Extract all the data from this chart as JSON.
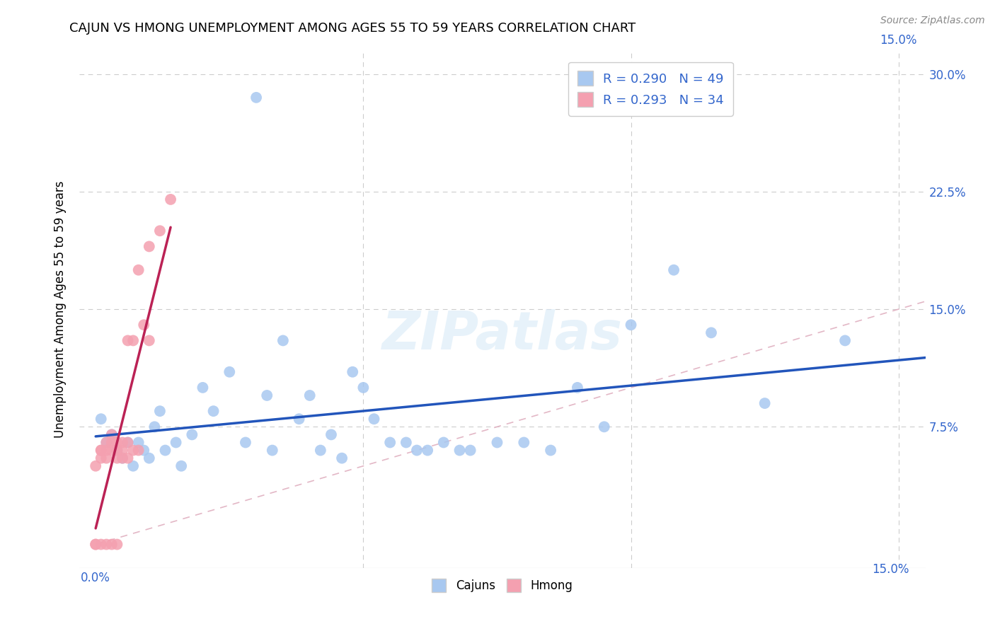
{
  "title": "CAJUN VS HMONG UNEMPLOYMENT AMONG AGES 55 TO 59 YEARS CORRELATION CHART",
  "source": "Source: ZipAtlas.com",
  "ylabel": "Unemployment Among Ages 55 to 59 years",
  "xlim": [
    -0.003,
    0.155
  ],
  "ylim": [
    -0.015,
    0.315
  ],
  "xtick_left": 0.0,
  "xtick_right": 0.15,
  "yticks": [
    0.075,
    0.15,
    0.225,
    0.3
  ],
  "ytick_labels": [
    "7.5%",
    "15.0%",
    "22.5%",
    "30.0%"
  ],
  "cajun_color": "#a8c8f0",
  "hmong_color": "#f4a0b0",
  "cajun_line_color": "#2255bb",
  "hmong_line_color": "#bb2255",
  "diagonal_color": "#e0b0c0",
  "legend_R_cajun": "R = 0.290",
  "legend_N_cajun": "N = 49",
  "legend_R_hmong": "R = 0.293",
  "legend_N_hmong": "N = 34",
  "cajun_x": [
    0.001,
    0.002,
    0.003,
    0.004,
    0.005,
    0.006,
    0.007,
    0.008,
    0.009,
    0.01,
    0.011,
    0.012,
    0.013,
    0.015,
    0.016,
    0.018,
    0.02,
    0.022,
    0.025,
    0.028,
    0.03,
    0.032,
    0.033,
    0.035,
    0.038,
    0.04,
    0.042,
    0.044,
    0.046,
    0.048,
    0.05,
    0.052,
    0.055,
    0.058,
    0.06,
    0.062,
    0.065,
    0.068,
    0.07,
    0.075,
    0.08,
    0.085,
    0.09,
    0.095,
    0.1,
    0.108,
    0.115,
    0.125,
    0.14
  ],
  "cajun_y": [
    0.08,
    0.065,
    0.07,
    0.06,
    0.055,
    0.065,
    0.05,
    0.065,
    0.06,
    0.055,
    0.075,
    0.085,
    0.06,
    0.065,
    0.05,
    0.07,
    0.1,
    0.085,
    0.11,
    0.065,
    0.285,
    0.095,
    0.06,
    0.13,
    0.08,
    0.095,
    0.06,
    0.07,
    0.055,
    0.11,
    0.1,
    0.08,
    0.065,
    0.065,
    0.06,
    0.06,
    0.065,
    0.06,
    0.06,
    0.065,
    0.065,
    0.06,
    0.1,
    0.075,
    0.14,
    0.175,
    0.135,
    0.09,
    0.13
  ],
  "hmong_x": [
    0.0,
    0.0,
    0.0,
    0.001,
    0.001,
    0.001,
    0.001,
    0.002,
    0.002,
    0.002,
    0.002,
    0.003,
    0.003,
    0.003,
    0.003,
    0.004,
    0.004,
    0.004,
    0.004,
    0.005,
    0.005,
    0.005,
    0.006,
    0.006,
    0.006,
    0.007,
    0.007,
    0.008,
    0.008,
    0.009,
    0.01,
    0.01,
    0.012,
    0.014
  ],
  "hmong_y": [
    0.0,
    0.05,
    0.0,
    0.06,
    0.055,
    0.06,
    0.0,
    0.065,
    0.06,
    0.055,
    0.0,
    0.065,
    0.06,
    0.07,
    0.0,
    0.065,
    0.06,
    0.055,
    0.0,
    0.06,
    0.065,
    0.055,
    0.055,
    0.065,
    0.13,
    0.06,
    0.13,
    0.06,
    0.175,
    0.14,
    0.19,
    0.13,
    0.2,
    0.22
  ]
}
